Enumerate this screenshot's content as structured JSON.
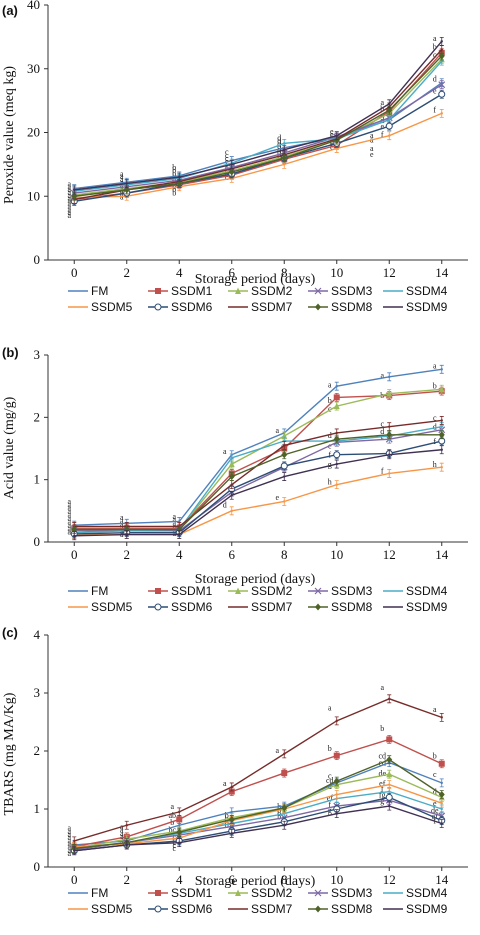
{
  "series_styles": [
    {
      "name": "FM",
      "color": "#4f81bd",
      "marker": "none"
    },
    {
      "name": "SSDM1",
      "color": "#c0504d",
      "marker": "square"
    },
    {
      "name": "SSDM2",
      "color": "#9bbb59",
      "marker": "triangle"
    },
    {
      "name": "SSDM3",
      "color": "#7f69a5",
      "marker": "x"
    },
    {
      "name": "SSDM4",
      "color": "#4bacc6",
      "marker": "none"
    },
    {
      "name": "SSDM5",
      "color": "#f79646",
      "marker": "none"
    },
    {
      "name": "SSDM6",
      "color": "#2c4d75",
      "marker": "circle"
    },
    {
      "name": "SSDM7",
      "color": "#772c2a",
      "marker": "none"
    },
    {
      "name": "SSDM8",
      "color": "#4f6228",
      "marker": "diamond"
    },
    {
      "name": "SSDM9",
      "color": "#403152",
      "marker": "none"
    }
  ],
  "chart_data": [
    {
      "panel": "(a)",
      "type": "line",
      "xlabel": "Storage period (days)",
      "ylabel": "Peroxide value (meq kg)",
      "x": [
        0,
        2,
        4,
        6,
        8,
        10,
        12,
        14
      ],
      "ylim": [
        0,
        40
      ],
      "yticks": [
        0,
        10,
        20,
        30,
        40
      ],
      "grid": false,
      "legend": "bottom",
      "series": [
        {
          "name": "FM",
          "values": [
            11.2,
            12.2,
            13.2,
            15.6,
            17.6,
            19.2,
            22.0,
            27.8
          ]
        },
        {
          "name": "SSDM1",
          "values": [
            9.5,
            10.5,
            11.8,
            13.3,
            15.8,
            18.0,
            23.3,
            32.5
          ]
        },
        {
          "name": "SSDM2",
          "values": [
            10.2,
            11.2,
            12.2,
            14.0,
            16.2,
            18.8,
            23.0,
            31.5
          ]
        },
        {
          "name": "SSDM3",
          "values": [
            10.5,
            11.5,
            12.5,
            14.5,
            16.8,
            19.3,
            22.3,
            27.5
          ]
        },
        {
          "name": "SSDM4",
          "values": [
            10.8,
            11.8,
            12.8,
            15.2,
            18.3,
            19.0,
            22.0,
            31.2
          ]
        },
        {
          "name": "SSDM5",
          "values": [
            9.8,
            10.0,
            11.5,
            12.8,
            15.0,
            17.5,
            19.5,
            23.0
          ]
        },
        {
          "name": "SSDM6",
          "values": [
            9.2,
            10.5,
            12.0,
            13.5,
            16.0,
            18.3,
            21.0,
            26.0
          ]
        },
        {
          "name": "SSDM7",
          "values": [
            9.5,
            11.0,
            12.3,
            14.3,
            16.5,
            19.0,
            24.0,
            33.0
          ]
        },
        {
          "name": "SSDM8",
          "values": [
            10.0,
            11.0,
            12.0,
            13.8,
            16.0,
            18.8,
            23.5,
            32.0
          ]
        },
        {
          "name": "SSDM9",
          "values": [
            11.0,
            12.0,
            13.0,
            15.0,
            17.3,
            19.5,
            24.5,
            34.3
          ]
        }
      ],
      "annotations": [
        {
          "x": 14,
          "y": 34.8,
          "text": "a"
        },
        {
          "x": 14,
          "y": 33.5,
          "text": "b"
        },
        {
          "x": 14,
          "y": 32.2,
          "text": "c"
        },
        {
          "x": 14,
          "y": 28.5,
          "text": "d"
        },
        {
          "x": 14,
          "y": 26.6,
          "text": "e"
        },
        {
          "x": 14,
          "y": 23.6,
          "text": "f"
        },
        {
          "x": 12,
          "y": 24.8,
          "text": "a"
        },
        {
          "x": 12,
          "y": 23.8,
          "text": "b"
        },
        {
          "x": 12,
          "y": 22.8,
          "text": "c"
        },
        {
          "x": 12,
          "y": 22.0,
          "text": "d"
        },
        {
          "x": 12,
          "y": 21.0,
          "text": "e"
        },
        {
          "x": 12,
          "y": 19.8,
          "text": "f"
        },
        {
          "x": 11.6,
          "y": 18.9,
          "text": "a"
        },
        {
          "x": 11.6,
          "y": 17.6,
          "text": "a"
        },
        {
          "x": 11.6,
          "y": 16.6,
          "text": "e"
        },
        {
          "x": 11.6,
          "y": 19.6,
          "text": "a"
        }
      ],
      "stacks": [
        {
          "x": 0,
          "n": 12,
          "top": 12.0,
          "step": 0.45,
          "letter": "a"
        },
        {
          "x": 2,
          "n": 9,
          "top": 13.6,
          "step": 0.45,
          "letter": "a"
        },
        {
          "x": 4,
          "n": 9,
          "top": 14.6,
          "step": 0.5,
          "letter": "b"
        },
        {
          "x": 6,
          "n": 9,
          "top": 17.0,
          "step": 0.5,
          "letter": "c"
        },
        {
          "x": 8,
          "n": 8,
          "top": 19.2,
          "step": 0.45,
          "letter": "d"
        },
        {
          "x": 10,
          "n": 7,
          "top": 20.2,
          "step": 0.4,
          "letter": "e"
        }
      ]
    },
    {
      "panel": "(b)",
      "type": "line",
      "xlabel": "Storage period (days)",
      "ylabel": "Acid value  (mg/g)",
      "x": [
        0,
        2,
        4,
        6,
        8,
        10,
        12,
        14
      ],
      "ylim": [
        0,
        3
      ],
      "yticks": [
        0,
        1,
        2,
        3
      ],
      "grid": false,
      "legend": "bottom",
      "series": [
        {
          "name": "FM",
          "values": [
            0.27,
            0.3,
            0.33,
            1.4,
            1.75,
            2.5,
            2.65,
            2.77
          ]
        },
        {
          "name": "SSDM1",
          "values": [
            0.22,
            0.22,
            0.22,
            1.1,
            1.5,
            2.32,
            2.35,
            2.42
          ]
        },
        {
          "name": "SSDM2",
          "values": [
            0.2,
            0.2,
            0.2,
            1.25,
            1.7,
            2.18,
            2.38,
            2.45
          ]
        },
        {
          "name": "SSDM3",
          "values": [
            0.18,
            0.18,
            0.18,
            0.8,
            1.2,
            1.6,
            1.65,
            1.8
          ]
        },
        {
          "name": "SSDM4",
          "values": [
            0.15,
            0.18,
            0.2,
            1.35,
            1.62,
            1.62,
            1.7,
            1.85
          ]
        },
        {
          "name": "SSDM5",
          "values": [
            0.12,
            0.12,
            0.12,
            0.5,
            0.65,
            0.92,
            1.1,
            1.2
          ]
        },
        {
          "name": "SSDM6",
          "values": [
            0.13,
            0.15,
            0.15,
            0.85,
            1.22,
            1.4,
            1.42,
            1.62
          ]
        },
        {
          "name": "SSDM7",
          "values": [
            0.25,
            0.25,
            0.25,
            0.92,
            1.55,
            1.75,
            1.85,
            1.95
          ]
        },
        {
          "name": "SSDM8",
          "values": [
            0.2,
            0.2,
            0.2,
            1.05,
            1.4,
            1.65,
            1.72,
            1.72
          ]
        },
        {
          "name": "SSDM9",
          "values": [
            0.1,
            0.12,
            0.12,
            0.75,
            1.05,
            1.25,
            1.4,
            1.48
          ]
        }
      ],
      "annotations": [
        {
          "x": 6,
          "y": 1.46,
          "text": "a"
        },
        {
          "x": 6,
          "y": 0.6,
          "text": "d"
        },
        {
          "x": 8,
          "y": 1.8,
          "text": "a"
        },
        {
          "x": 8,
          "y": 0.72,
          "text": "e"
        },
        {
          "x": 10,
          "y": 2.53,
          "text": "a"
        },
        {
          "x": 10,
          "y": 2.28,
          "text": "b"
        },
        {
          "x": 10,
          "y": 2.14,
          "text": "c"
        },
        {
          "x": 10,
          "y": 1.72,
          "text": "d"
        },
        {
          "x": 10,
          "y": 1.55,
          "text": "e"
        },
        {
          "x": 10,
          "y": 1.4,
          "text": "f"
        },
        {
          "x": 10,
          "y": 1.25,
          "text": "g"
        },
        {
          "x": 10,
          "y": 0.97,
          "text": "h"
        },
        {
          "x": 12,
          "y": 2.68,
          "text": "a"
        },
        {
          "x": 12,
          "y": 2.36,
          "text": "b"
        },
        {
          "x": 12,
          "y": 1.9,
          "text": "c"
        },
        {
          "x": 12,
          "y": 1.78,
          "text": "d"
        },
        {
          "x": 12,
          "y": 1.7,
          "text": "e"
        },
        {
          "x": 12,
          "y": 1.15,
          "text": "f"
        },
        {
          "x": 14,
          "y": 2.83,
          "text": "a"
        },
        {
          "x": 14,
          "y": 2.51,
          "text": "b"
        },
        {
          "x": 14,
          "y": 2.0,
          "text": "c"
        },
        {
          "x": 14,
          "y": 1.85,
          "text": "d"
        },
        {
          "x": 14,
          "y": 1.62,
          "text": "f"
        },
        {
          "x": 14,
          "y": 1.25,
          "text": "h"
        }
      ],
      "stacks": [
        {
          "x": 0,
          "n": 10,
          "top": 0.66,
          "step": 0.055,
          "letter": "a"
        },
        {
          "x": 2,
          "n": 6,
          "top": 0.4,
          "step": 0.055,
          "letter": "a"
        },
        {
          "x": 4,
          "n": 6,
          "top": 0.42,
          "step": 0.055,
          "letter": "a"
        }
      ]
    },
    {
      "panel": "(c)",
      "type": "line",
      "xlabel": "Storage period (days)",
      "ylabel": "TBARS  (mg MA/Kg)",
      "x": [
        0,
        2,
        4,
        6,
        8,
        10,
        12,
        14
      ],
      "ylim": [
        0,
        4
      ],
      "yticks": [
        0,
        1,
        2,
        3,
        4
      ],
      "grid": false,
      "legend": "bottom",
      "series": [
        {
          "name": "FM",
          "values": [
            0.38,
            0.45,
            0.72,
            0.95,
            1.05,
            1.45,
            1.8,
            1.45
          ]
        },
        {
          "name": "SSDM1",
          "values": [
            0.35,
            0.52,
            0.82,
            1.3,
            1.62,
            1.92,
            2.2,
            1.78
          ]
        },
        {
          "name": "SSDM2",
          "values": [
            0.32,
            0.48,
            0.62,
            0.85,
            1.02,
            1.42,
            1.6,
            1.2
          ]
        },
        {
          "name": "SSDM3",
          "values": [
            0.3,
            0.42,
            0.55,
            0.7,
            0.85,
            1.05,
            1.15,
            0.88
          ]
        },
        {
          "name": "SSDM4",
          "values": [
            0.33,
            0.42,
            0.58,
            0.75,
            0.92,
            1.18,
            1.3,
            1.0
          ]
        },
        {
          "name": "SSDM5",
          "values": [
            0.35,
            0.4,
            0.5,
            0.8,
            1.0,
            1.25,
            1.42,
            1.1
          ]
        },
        {
          "name": "SSDM6",
          "values": [
            0.28,
            0.38,
            0.45,
            0.62,
            0.78,
            1.0,
            1.2,
            0.8
          ]
        },
        {
          "name": "SSDM7",
          "values": [
            0.45,
            0.72,
            0.95,
            1.38,
            1.95,
            2.52,
            2.9,
            2.58
          ]
        },
        {
          "name": "SSDM8",
          "values": [
            0.32,
            0.42,
            0.6,
            0.82,
            1.02,
            1.48,
            1.85,
            1.25
          ]
        },
        {
          "name": "SSDM9",
          "values": [
            0.28,
            0.38,
            0.42,
            0.58,
            0.72,
            0.92,
            1.05,
            0.75
          ]
        }
      ],
      "annotations": [
        {
          "x": 4,
          "y": 1.05,
          "text": "a"
        },
        {
          "x": 4,
          "y": 0.9,
          "text": "ab"
        },
        {
          "x": 4,
          "y": 0.78,
          "text": "b"
        },
        {
          "x": 4,
          "y": 0.65,
          "text": "bc"
        },
        {
          "x": 6,
          "y": 1.45,
          "text": "a"
        },
        {
          "x": 8,
          "y": 2.02,
          "text": "a"
        },
        {
          "x": 10,
          "y": 2.75,
          "text": "a"
        },
        {
          "x": 10,
          "y": 2.05,
          "text": "b"
        },
        {
          "x": 10,
          "y": 1.58,
          "text": "c"
        },
        {
          "x": 10,
          "y": 1.5,
          "text": "cd"
        },
        {
          "x": 10,
          "y": 1.4,
          "text": "d"
        },
        {
          "x": 10,
          "y": 1.2,
          "text": "ef"
        },
        {
          "x": 10,
          "y": 1.08,
          "text": "f"
        },
        {
          "x": 10,
          "y": 0.98,
          "text": "g"
        },
        {
          "x": 12,
          "y": 3.1,
          "text": "a"
        },
        {
          "x": 12,
          "y": 2.4,
          "text": "b"
        },
        {
          "x": 12,
          "y": 1.92,
          "text": "cd"
        },
        {
          "x": 12,
          "y": 1.8,
          "text": "cd"
        },
        {
          "x": 12,
          "y": 1.62,
          "text": "de"
        },
        {
          "x": 12,
          "y": 1.45,
          "text": "ef"
        },
        {
          "x": 12,
          "y": 1.35,
          "text": "f"
        },
        {
          "x": 12,
          "y": 1.25,
          "text": "fg"
        },
        {
          "x": 12,
          "y": 1.15,
          "text": "g"
        },
        {
          "x": 14,
          "y": 2.72,
          "text": "a"
        },
        {
          "x": 14,
          "y": 1.92,
          "text": "b"
        },
        {
          "x": 14,
          "y": 1.6,
          "text": "c"
        },
        {
          "x": 14,
          "y": 1.3,
          "text": "d"
        },
        {
          "x": 14,
          "y": 1.1,
          "text": "e"
        },
        {
          "x": 14,
          "y": 0.98,
          "text": "de"
        },
        {
          "x": 14,
          "y": 0.88,
          "text": "ef"
        },
        {
          "x": 14,
          "y": 0.8,
          "text": "f"
        }
      ],
      "stacks": [
        {
          "x": 0,
          "n": 9,
          "top": 0.68,
          "step": 0.055,
          "letter": "a"
        },
        {
          "x": 2,
          "n": 6,
          "top": 0.7,
          "step": 0.055,
          "letter": "a"
        },
        {
          "x": 4,
          "n": 6,
          "top": 0.58,
          "step": 0.05,
          "letter": "c"
        },
        {
          "x": 6,
          "n": 4,
          "top": 0.9,
          "step": 0.06,
          "letter": "b"
        },
        {
          "x": 8,
          "n": 4,
          "top": 1.05,
          "step": 0.06,
          "letter": "b"
        }
      ]
    }
  ]
}
